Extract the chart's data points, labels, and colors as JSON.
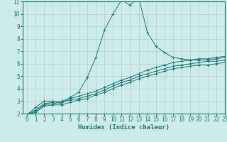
{
  "xlabel": "Humidex (Indice chaleur)",
  "x_values": [
    0,
    1,
    2,
    3,
    4,
    5,
    6,
    7,
    8,
    9,
    10,
    11,
    12,
    13,
    14,
    15,
    16,
    17,
    18,
    19,
    20,
    21,
    22,
    23
  ],
  "series": [
    [
      1.9,
      2.5,
      3.0,
      3.0,
      2.8,
      3.3,
      3.7,
      4.9,
      6.5,
      8.7,
      10.0,
      11.1,
      10.7,
      11.3,
      8.5,
      7.4,
      6.9,
      6.5,
      6.4,
      6.3,
      6.3,
      6.3,
      6.4,
      6.5
    ],
    [
      1.9,
      2.3,
      2.8,
      2.9,
      3.0,
      3.2,
      3.4,
      3.6,
      3.8,
      4.1,
      4.4,
      4.7,
      4.9,
      5.2,
      5.5,
      5.7,
      5.9,
      6.1,
      6.2,
      6.3,
      6.4,
      6.4,
      6.5,
      6.6
    ],
    [
      1.9,
      2.2,
      2.7,
      2.8,
      2.9,
      3.1,
      3.2,
      3.4,
      3.6,
      3.9,
      4.2,
      4.5,
      4.7,
      5.0,
      5.2,
      5.4,
      5.6,
      5.8,
      5.9,
      6.0,
      6.1,
      6.2,
      6.2,
      6.3
    ],
    [
      1.9,
      2.1,
      2.6,
      2.7,
      2.7,
      2.9,
      3.1,
      3.2,
      3.5,
      3.7,
      4.0,
      4.3,
      4.5,
      4.8,
      5.0,
      5.2,
      5.4,
      5.6,
      5.7,
      5.8,
      5.9,
      5.9,
      6.0,
      6.1
    ]
  ],
  "line_color": "#1a7a6e",
  "marker_color": "#1a7a6e",
  "background_color": "#ceeaea",
  "grid_color": "#aed0d0",
  "ylim": [
    2,
    11
  ],
  "xlim": [
    -0.5,
    23
  ],
  "yticks": [
    2,
    3,
    4,
    5,
    6,
    7,
    8,
    9,
    10,
    11
  ],
  "xticks": [
    0,
    1,
    2,
    3,
    4,
    5,
    6,
    7,
    8,
    9,
    10,
    11,
    12,
    13,
    14,
    15,
    16,
    17,
    18,
    19,
    20,
    21,
    22,
    23
  ],
  "tick_fontsize": 5.5,
  "label_fontsize": 6.5,
  "marker": "+"
}
